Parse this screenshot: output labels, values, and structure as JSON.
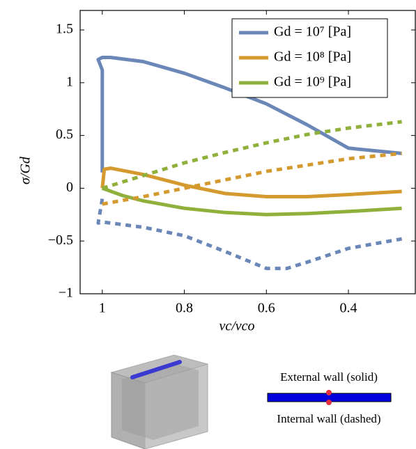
{
  "chart_data": {
    "type": "line",
    "xlabel": "vc/vco",
    "ylabel": "σ/Gd",
    "xlim": [
      1.054,
      0.237
    ],
    "ylim": [
      -1,
      1.685
    ],
    "xticks": [
      1,
      0.8,
      0.6,
      0.4
    ],
    "yticks": [
      {
        "value": -1,
        "label": "−1"
      },
      {
        "value": -0.5,
        "label": "−0.5"
      },
      0,
      0.5,
      1,
      1.5
    ],
    "legend": "top-right",
    "series": [
      {
        "name": "Gd = 10⁷ [Pa]",
        "color": "#6b87b8",
        "dashed": false,
        "x": [
          1.0,
          1.0,
          1.01,
          1.0,
          0.98,
          0.9,
          0.8,
          0.7,
          0.6,
          0.5,
          0.4,
          0.27
        ],
        "values": [
          0.15,
          1.12,
          1.22,
          1.24,
          1.24,
          1.2,
          1.09,
          0.95,
          0.8,
          0.6,
          0.38,
          0.33
        ]
      },
      {
        "name": "Gd = 10⁸ [Pa]",
        "color": "#d59a2f",
        "dashed": false,
        "x": [
          1.0,
          0.995,
          0.98,
          0.9,
          0.8,
          0.7,
          0.6,
          0.5,
          0.4,
          0.27
        ],
        "values": [
          0.0,
          0.18,
          0.19,
          0.13,
          0.03,
          -0.05,
          -0.08,
          -0.08,
          -0.06,
          -0.03
        ]
      },
      {
        "name": "Gd = 10⁹ [Pa]",
        "color": "#90b03c",
        "dashed": false,
        "x": [
          1.0,
          0.95,
          0.9,
          0.8,
          0.7,
          0.6,
          0.5,
          0.4,
          0.27
        ],
        "values": [
          0.0,
          -0.07,
          -0.12,
          -0.19,
          -0.23,
          -0.25,
          -0.24,
          -0.22,
          -0.19
        ]
      },
      {
        "color": "#6b87b8",
        "dashed": true,
        "x": [
          1.0,
          1.01,
          1.0,
          0.9,
          0.8,
          0.7,
          0.6,
          0.55,
          0.5,
          0.4,
          0.27
        ],
        "values": [
          -0.1,
          -0.33,
          -0.32,
          -0.37,
          -0.45,
          -0.6,
          -0.76,
          -0.76,
          -0.7,
          -0.57,
          -0.48
        ]
      },
      {
        "color": "#d59a2f",
        "dashed": true,
        "x": [
          1.0,
          0.9,
          0.8,
          0.7,
          0.6,
          0.5,
          0.4,
          0.27
        ],
        "values": [
          -0.15,
          -0.08,
          0.0,
          0.08,
          0.16,
          0.22,
          0.28,
          0.33
        ]
      },
      {
        "color": "#90b03c",
        "dashed": true,
        "x": [
          1.0,
          0.9,
          0.8,
          0.7,
          0.6,
          0.5,
          0.4,
          0.27
        ],
        "values": [
          0.0,
          0.12,
          0.24,
          0.34,
          0.43,
          0.51,
          0.57,
          0.63
        ]
      }
    ]
  },
  "inset": {
    "labels": [
      "External wall (solid)",
      "Internal wall (dashed)"
    ]
  }
}
